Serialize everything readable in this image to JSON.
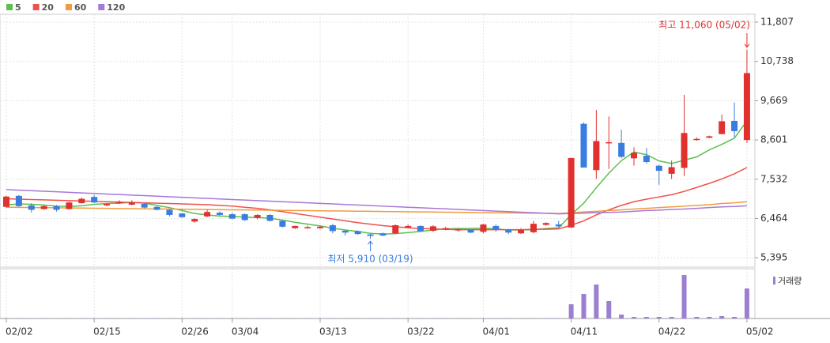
{
  "chart_data": {
    "type": "candlestick",
    "categories": [
      "02/02",
      null,
      null,
      null,
      null,
      null,
      null,
      "02/15",
      null,
      null,
      null,
      null,
      null,
      null,
      "02/26",
      null,
      null,
      null,
      "03/04",
      null,
      null,
      null,
      null,
      null,
      null,
      "03/13",
      null,
      null,
      null,
      null,
      null,
      null,
      "03/22",
      null,
      null,
      null,
      null,
      null,
      "04/01",
      null,
      null,
      null,
      null,
      null,
      null,
      "04/11",
      null,
      null,
      null,
      null,
      null,
      null,
      "04/22",
      null,
      null,
      null,
      null,
      null,
      null,
      "05/02"
    ],
    "open": [
      6780,
      7080,
      6820,
      6720,
      6800,
      6720,
      6880,
      7050,
      6820,
      6880,
      6840,
      6860,
      6780,
      6700,
      6600,
      6380,
      6520,
      6620,
      6580,
      6580,
      6480,
      6560,
      6400,
      6200,
      6200,
      6200,
      6280,
      6130,
      6120,
      6030,
      6060,
      6060,
      6220,
      6260,
      6130,
      6160,
      6140,
      6150,
      6100,
      6260,
      6150,
      6060,
      6090,
      6290,
      6300,
      6220,
      9040,
      7780,
      8520,
      8520,
      8100,
      8170,
      7900,
      7680,
      7840,
      8600,
      8660,
      8760,
      9120,
      8600
    ],
    "high": [
      7080,
      7100,
      6880,
      6830,
      6830,
      6920,
      7030,
      7100,
      6880,
      6960,
      6960,
      6880,
      6800,
      6720,
      6620,
      6470,
      6700,
      6660,
      6620,
      6600,
      6580,
      6580,
      6420,
      6270,
      6270,
      6260,
      6320,
      6150,
      6140,
      6050,
      6080,
      6300,
      6300,
      6280,
      6280,
      6240,
      6200,
      6170,
      6320,
      6300,
      6180,
      6200,
      6400,
      6360,
      6400,
      8110,
      9080,
      9420,
      9240,
      8880,
      8400,
      8380,
      7930,
      8040,
      9830,
      8670,
      8720,
      9290,
      9620,
      11060
    ],
    "low": [
      6760,
      6780,
      6620,
      6700,
      6650,
      6700,
      6870,
      6880,
      6800,
      6860,
      6820,
      6740,
      6680,
      6520,
      6480,
      6350,
      6500,
      6540,
      6440,
      6400,
      6440,
      6380,
      6220,
      6180,
      6180,
      6180,
      6060,
      6000,
      6020,
      5910,
      5980,
      6040,
      6200,
      6100,
      6100,
      6140,
      6100,
      6060,
      6060,
      6100,
      6040,
      6040,
      6060,
      6270,
      6230,
      6200,
      7850,
      7540,
      7810,
      8100,
      7900,
      7960,
      7380,
      7540,
      7620,
      8580,
      8650,
      8760,
      8680,
      8520
    ],
    "close": [
      7060,
      6800,
      6700,
      6800,
      6700,
      6900,
      7000,
      6900,
      6860,
      6920,
      6900,
      6760,
      6700,
      6560,
      6500,
      6450,
      6640,
      6560,
      6460,
      6420,
      6560,
      6400,
      6240,
      6260,
      6230,
      6240,
      6120,
      6080,
      6040,
      5990,
      6000,
      6280,
      6260,
      6120,
      6250,
      6200,
      6170,
      6080,
      6300,
      6160,
      6080,
      6150,
      6320,
      6340,
      6250,
      8110,
      7850,
      8570,
      8540,
      8140,
      8250,
      8000,
      7760,
      7860,
      8790,
      8630,
      8700,
      9110,
      8840,
      10420
    ],
    "up_color": "#e0312f",
    "down_color": "#3a7de0",
    "moving_averages": [
      {
        "name": "5",
        "color": "#5cbf4e",
        "values": [
          6830,
          6860,
          6850,
          6830,
          6800,
          6790,
          6810,
          6850,
          6870,
          6880,
          6900,
          6880,
          6820,
          6760,
          6680,
          6600,
          6560,
          6530,
          6520,
          6500,
          6490,
          6470,
          6420,
          6360,
          6310,
          6260,
          6200,
          6150,
          6110,
          6060,
          6040,
          6050,
          6080,
          6110,
          6150,
          6180,
          6190,
          6190,
          6200,
          6180,
          6150,
          6150,
          6160,
          6190,
          6210,
          6570,
          6880,
          7300,
          7700,
          8040,
          8270,
          8200,
          8030,
          7960,
          8050,
          8140,
          8330,
          8480,
          8650,
          9120
        ]
      },
      {
        "name": "20",
        "color": "#f0504a",
        "values": [
          7000,
          6990,
          6980,
          6970,
          6960,
          6950,
          6940,
          6930,
          6920,
          6910,
          6900,
          6890,
          6880,
          6870,
          6860,
          6850,
          6840,
          6820,
          6800,
          6770,
          6740,
          6700,
          6650,
          6600,
          6550,
          6500,
          6450,
          6400,
          6350,
          6310,
          6270,
          6240,
          6210,
          6190,
          6180,
          6170,
          6160,
          6160,
          6160,
          6160,
          6160,
          6160,
          6170,
          6170,
          6180,
          6280,
          6400,
          6560,
          6700,
          6820,
          6920,
          6990,
          7050,
          7110,
          7200,
          7310,
          7420,
          7540,
          7680,
          7850
        ]
      },
      {
        "name": "60",
        "color": "#f39a3c",
        "values": [
          6770,
          6766,
          6762,
          6758,
          6755,
          6751,
          6747,
          6743,
          6739,
          6735,
          6731,
          6727,
          6724,
          6720,
          6716,
          6712,
          6708,
          6704,
          6700,
          6697,
          6693,
          6689,
          6685,
          6681,
          6677,
          6673,
          6669,
          6666,
          6662,
          6658,
          6654,
          6650,
          6646,
          6642,
          6639,
          6635,
          6631,
          6627,
          6623,
          6619,
          6615,
          6612,
          6608,
          6604,
          6600,
          6620,
          6640,
          6660,
          6680,
          6700,
          6720,
          6740,
          6760,
          6780,
          6800,
          6820,
          6840,
          6870,
          6890,
          6920
        ]
      },
      {
        "name": "120",
        "color": "#a678d8",
        "values": [
          7250,
          7235,
          7220,
          7205,
          7190,
          7175,
          7160,
          7145,
          7130,
          7115,
          7100,
          7085,
          7070,
          7055,
          7040,
          7025,
          7010,
          6995,
          6980,
          6965,
          6950,
          6935,
          6920,
          6905,
          6890,
          6875,
          6860,
          6845,
          6830,
          6815,
          6800,
          6785,
          6770,
          6755,
          6740,
          6725,
          6710,
          6695,
          6680,
          6665,
          6650,
          6635,
          6620,
          6605,
          6590,
          6600,
          6610,
          6620,
          6630,
          6640,
          6660,
          6680,
          6690,
          6710,
          6720,
          6740,
          6760,
          6780,
          6790,
          6810
        ]
      }
    ],
    "volume": {
      "name": "거래량",
      "color": "#9b7fd0",
      "ylim": [
        0,
        60
      ],
      "values": [
        0.5,
        0.5,
        0.5,
        0.5,
        0.5,
        0.5,
        0.5,
        0.5,
        0.5,
        0.5,
        0.5,
        0.5,
        0.5,
        0.5,
        0.5,
        0.5,
        0.5,
        0.5,
        0.5,
        0.5,
        0.5,
        0.5,
        0.5,
        0.5,
        0.5,
        0.5,
        0.5,
        0.5,
        0.5,
        0.5,
        0.5,
        0.5,
        0.5,
        0.5,
        0.5,
        0.5,
        0.5,
        0.5,
        0.5,
        0.5,
        0.5,
        0.5,
        0.5,
        0.5,
        0.5,
        18,
        31,
        43,
        22,
        5,
        2,
        2,
        2,
        2,
        55,
        2,
        2,
        3,
        2,
        38
      ]
    },
    "ylim": [
      5140,
      12022
    ],
    "yticks": [
      {
        "value": 5395,
        "label": "5,395"
      },
      {
        "value": 6464,
        "label": "6,464"
      },
      {
        "value": 7532,
        "label": "7,532"
      },
      {
        "value": 8601,
        "label": "8,601"
      },
      {
        "value": 9669,
        "label": "9,669"
      },
      {
        "value": 10738,
        "label": "10,738"
      },
      {
        "value": 11807,
        "label": "11,807"
      }
    ],
    "grid": true,
    "annotations": [
      {
        "text": "최고 11,060 (05/02)",
        "color": "#e0312f"
      },
      {
        "text": "최저 5,910 (03/19)",
        "color": "#3a7de0"
      }
    ]
  }
}
